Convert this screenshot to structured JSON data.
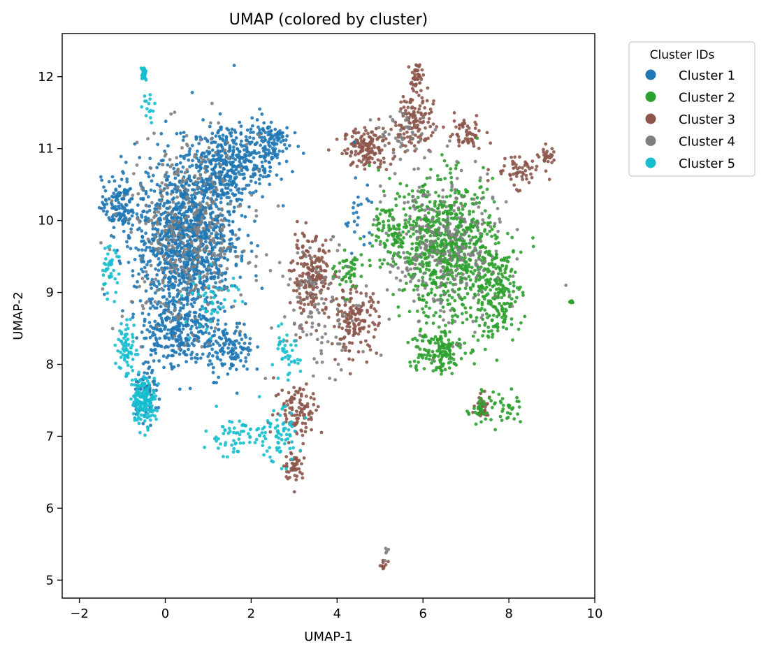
{
  "chart_data": {
    "type": "scatter",
    "title": "UMAP (colored by cluster)",
    "xlabel": "UMAP-1",
    "ylabel": "UMAP-2",
    "xlim": [
      -2.4,
      10.0
    ],
    "ylim": [
      4.75,
      12.6
    ],
    "xticks": [
      -2,
      0,
      2,
      4,
      6,
      8,
      10
    ],
    "yticks": [
      5,
      6,
      7,
      8,
      9,
      10,
      11,
      12
    ],
    "grid": false,
    "legend": {
      "title": "Cluster IDs",
      "position": "outside-upper-right"
    },
    "series": [
      {
        "name": "Cluster 1",
        "color": "#1f77b4",
        "regions": [
          {
            "center": [
              0.5,
              9.8
            ],
            "spread": [
              1.05,
              1.0
            ],
            "count": 1200
          },
          {
            "center": [
              1.5,
              10.8
            ],
            "spread": [
              0.8,
              0.5
            ],
            "count": 350
          },
          {
            "center": [
              2.4,
              11.1
            ],
            "spread": [
              0.45,
              0.3
            ],
            "count": 120
          },
          {
            "center": [
              -1.1,
              10.2
            ],
            "spread": [
              0.35,
              0.35
            ],
            "count": 120
          },
          {
            "center": [
              0.3,
              8.5
            ],
            "spread": [
              0.8,
              0.5
            ],
            "count": 300
          },
          {
            "center": [
              1.5,
              8.2
            ],
            "spread": [
              0.5,
              0.35
            ],
            "count": 120
          },
          {
            "center": [
              -0.4,
              7.6
            ],
            "spread": [
              0.3,
              0.3
            ],
            "count": 70
          },
          {
            "center": [
              4.5,
              10.0
            ],
            "spread": [
              0.4,
              0.6
            ],
            "count": 25
          }
        ]
      },
      {
        "name": "Cluster 2",
        "color": "#2ca02c",
        "regions": [
          {
            "center": [
              6.6,
              9.6
            ],
            "spread": [
              1.0,
              0.85
            ],
            "count": 700
          },
          {
            "center": [
              7.7,
              9.0
            ],
            "spread": [
              0.55,
              0.6
            ],
            "count": 220
          },
          {
            "center": [
              6.3,
              8.2
            ],
            "spread": [
              0.6,
              0.3
            ],
            "count": 150
          },
          {
            "center": [
              5.4,
              9.8
            ],
            "spread": [
              0.5,
              0.55
            ],
            "count": 120
          },
          {
            "center": [
              7.4,
              7.4
            ],
            "spread": [
              0.35,
              0.2
            ],
            "count": 40
          },
          {
            "center": [
              8.0,
              7.4
            ],
            "spread": [
              0.25,
              0.2
            ],
            "count": 25
          },
          {
            "center": [
              4.3,
              9.3
            ],
            "spread": [
              0.3,
              0.3
            ],
            "count": 50
          },
          {
            "center": [
              9.45,
              8.87
            ],
            "spread": [
              0.05,
              0.02
            ],
            "count": 8
          }
        ]
      },
      {
        "name": "Cluster 3",
        "color": "#8c564b",
        "regions": [
          {
            "center": [
              4.7,
              11.0
            ],
            "spread": [
              0.5,
              0.25
            ],
            "count": 150
          },
          {
            "center": [
              5.8,
              11.4
            ],
            "spread": [
              0.4,
              0.4
            ],
            "count": 120
          },
          {
            "center": [
              5.85,
              12.0
            ],
            "spread": [
              0.12,
              0.15
            ],
            "count": 40
          },
          {
            "center": [
              7.0,
              11.2
            ],
            "spread": [
              0.4,
              0.2
            ],
            "count": 60
          },
          {
            "center": [
              8.2,
              10.7
            ],
            "spread": [
              0.5,
              0.2
            ],
            "count": 60
          },
          {
            "center": [
              8.9,
              10.9
            ],
            "spread": [
              0.2,
              0.1
            ],
            "count": 25
          },
          {
            "center": [
              3.4,
              9.2
            ],
            "spread": [
              0.4,
              0.5
            ],
            "count": 200
          },
          {
            "center": [
              4.4,
              8.6
            ],
            "spread": [
              0.5,
              0.4
            ],
            "count": 150
          },
          {
            "center": [
              3.1,
              7.4
            ],
            "spread": [
              0.5,
              0.35
            ],
            "count": 100
          },
          {
            "center": [
              3.0,
              6.6
            ],
            "spread": [
              0.2,
              0.2
            ],
            "count": 50
          },
          {
            "center": [
              7.4,
              7.4
            ],
            "spread": [
              0.2,
              0.15
            ],
            "count": 30
          },
          {
            "center": [
              5.08,
              5.2
            ],
            "spread": [
              0.08,
              0.06
            ],
            "count": 12
          }
        ]
      },
      {
        "name": "Cluster 4",
        "color": "#7f7f7f",
        "regions": [
          {
            "center": [
              0.5,
              9.8
            ],
            "spread": [
              1.3,
              1.2
            ],
            "count": 400
          },
          {
            "center": [
              6.5,
              9.6
            ],
            "spread": [
              1.2,
              1.0
            ],
            "count": 300
          },
          {
            "center": [
              3.6,
              8.8
            ],
            "spread": [
              0.8,
              0.8
            ],
            "count": 100
          },
          {
            "center": [
              5.5,
              11.2
            ],
            "spread": [
              0.6,
              0.3
            ],
            "count": 40
          },
          {
            "center": [
              5.15,
              5.4
            ],
            "spread": [
              0.05,
              0.1
            ],
            "count": 5
          }
        ]
      },
      {
        "name": "Cluster 5",
        "color": "#17becf",
        "regions": [
          {
            "center": [
              -0.5,
              7.5
            ],
            "spread": [
              0.25,
              0.3
            ],
            "count": 160
          },
          {
            "center": [
              -0.9,
              8.2
            ],
            "spread": [
              0.2,
              0.4
            ],
            "count": 70
          },
          {
            "center": [
              -0.5,
              12.05
            ],
            "spread": [
              0.06,
              0.08
            ],
            "count": 30
          },
          {
            "center": [
              -0.4,
              11.6
            ],
            "spread": [
              0.15,
              0.2
            ],
            "count": 15
          },
          {
            "center": [
              1.6,
              7.0
            ],
            "spread": [
              0.6,
              0.25
            ],
            "count": 60
          },
          {
            "center": [
              2.6,
              7.0
            ],
            "spread": [
              0.5,
              0.35
            ],
            "count": 70
          },
          {
            "center": [
              2.8,
              8.1
            ],
            "spread": [
              0.3,
              0.3
            ],
            "count": 40
          },
          {
            "center": [
              -1.3,
              9.3
            ],
            "spread": [
              0.2,
              0.3
            ],
            "count": 40
          },
          {
            "center": [
              1.1,
              8.9
            ],
            "spread": [
              0.6,
              0.4
            ],
            "count": 40
          }
        ]
      }
    ]
  }
}
